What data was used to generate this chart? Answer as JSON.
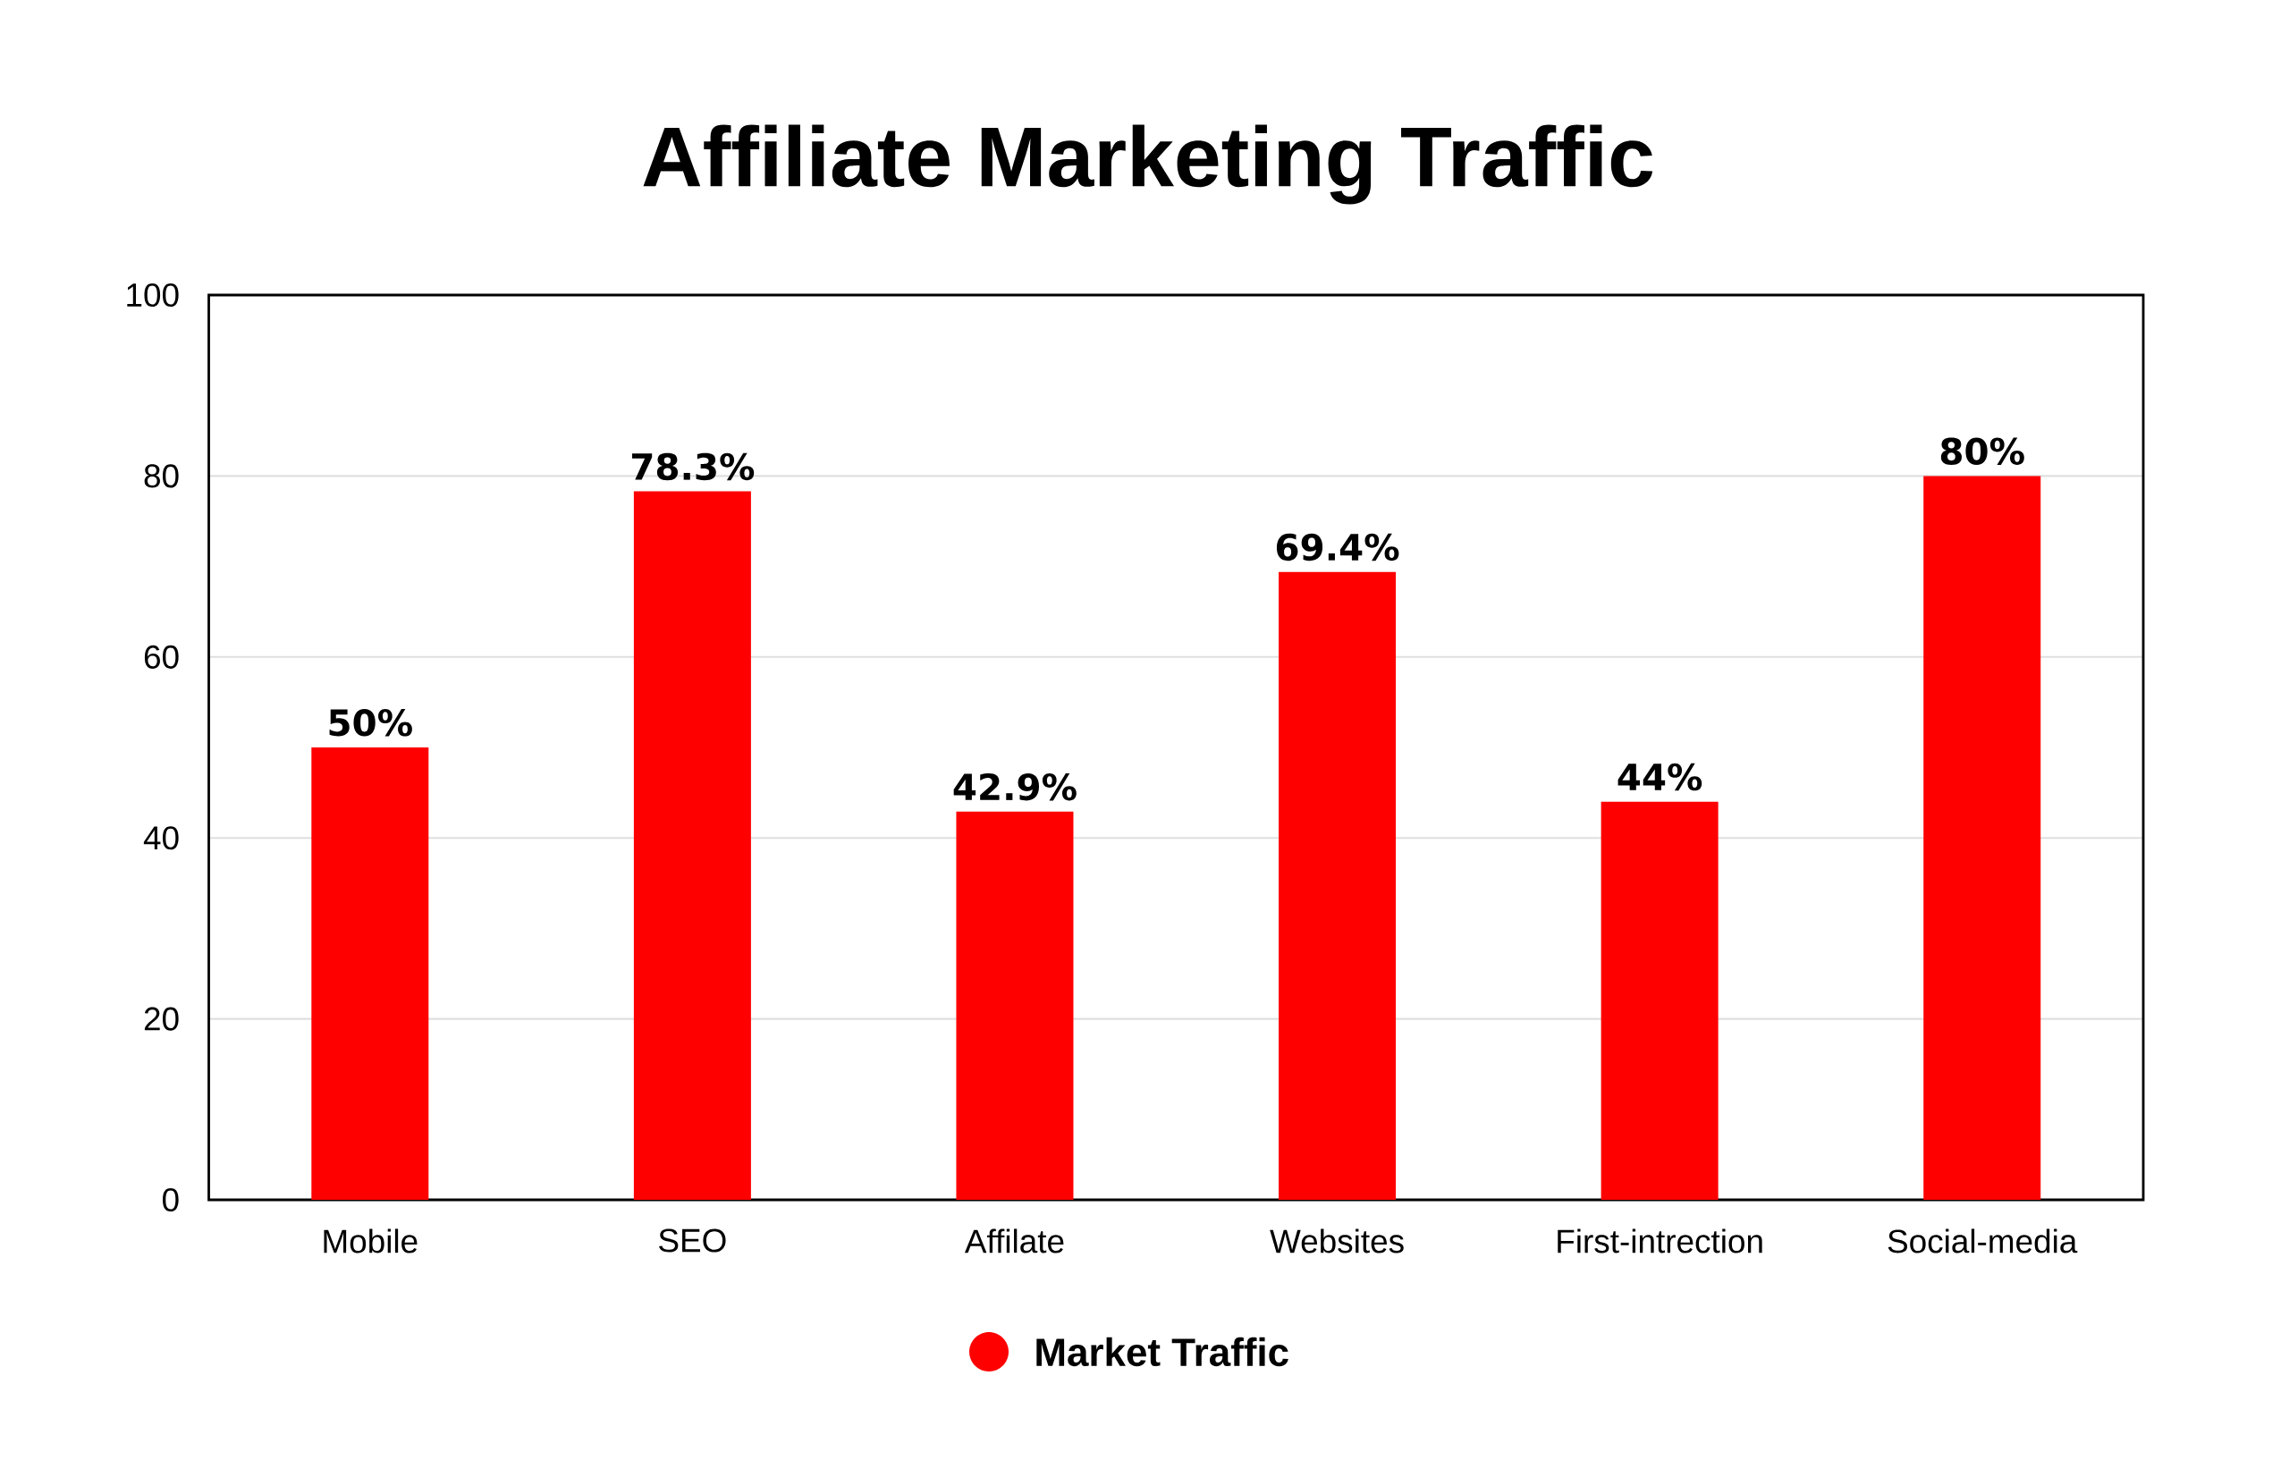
{
  "chart_data": {
    "type": "bar",
    "title": "Affiliate Marketing Traffic",
    "categories": [
      "Mobile",
      "SEO",
      "Affilate",
      "Websites",
      "First-intrection",
      "Social-media"
    ],
    "series": [
      {
        "name": "Market Traffic",
        "color": "#ff0000",
        "values": [
          50,
          78.3,
          42.9,
          69.4,
          44,
          80
        ],
        "value_labels": [
          "50%",
          "78.3%",
          "42.9%",
          "69.4%",
          "44%",
          "80%"
        ]
      }
    ],
    "ylim": [
      0,
      100
    ],
    "yticks": [
      0,
      20,
      40,
      60,
      80,
      100
    ],
    "grid": "y",
    "legend": "bottom"
  }
}
